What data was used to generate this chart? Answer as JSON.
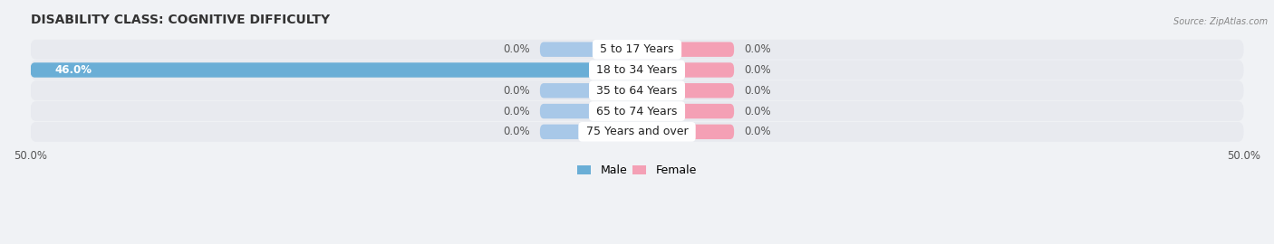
{
  "title": "DISABILITY CLASS: COGNITIVE DIFFICULTY",
  "source": "Source: ZipAtlas.com",
  "categories": [
    "5 to 17 Years",
    "18 to 34 Years",
    "35 to 64 Years",
    "65 to 74 Years",
    "75 Years and over"
  ],
  "male_values": [
    0.0,
    46.0,
    0.0,
    0.0,
    0.0
  ],
  "female_values": [
    0.0,
    0.0,
    0.0,
    0.0,
    0.0
  ],
  "male_stub": 8.0,
  "female_stub": 8.0,
  "xlim": [
    -50,
    50
  ],
  "male_color": "#6aaed6",
  "female_color": "#f4a0b5",
  "male_color_stub": "#a8c8e8",
  "female_color_stub": "#f4a0b5",
  "row_bg_color": "#e8eaef",
  "fig_bg_color": "#f0f2f5",
  "bar_height": 0.72,
  "title_fontsize": 10,
  "label_fontsize": 9,
  "value_fontsize": 8.5,
  "tick_fontsize": 8.5,
  "legend_fontsize": 9,
  "value_color_inner": "#ffffff",
  "value_color_outer": "#555555"
}
